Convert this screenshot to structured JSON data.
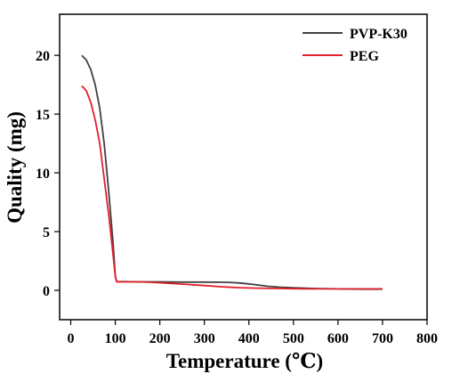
{
  "chart_data": {
    "type": "line",
    "xlabel": "Temperature (℃)",
    "ylabel": "Quality (mg)",
    "xlim": [
      -25,
      800
    ],
    "ylim": [
      -2.5,
      23.5
    ],
    "xticks": [
      0,
      100,
      200,
      300,
      400,
      500,
      600,
      700,
      800
    ],
    "yticks": [
      0,
      5,
      10,
      15,
      20
    ],
    "legend_position": "top-right",
    "grid": false,
    "series": [
      {
        "name": "PVP-K30",
        "color": "#404040",
        "points": [
          [
            25,
            20.0
          ],
          [
            35,
            19.6
          ],
          [
            45,
            18.8
          ],
          [
            55,
            17.5
          ],
          [
            65,
            15.5
          ],
          [
            75,
            12.5
          ],
          [
            85,
            8.5
          ],
          [
            95,
            4.0
          ],
          [
            100,
            1.2
          ],
          [
            103,
            0.75
          ],
          [
            150,
            0.72
          ],
          [
            200,
            0.72
          ],
          [
            250,
            0.7
          ],
          [
            300,
            0.7
          ],
          [
            350,
            0.68
          ],
          [
            380,
            0.62
          ],
          [
            410,
            0.5
          ],
          [
            440,
            0.35
          ],
          [
            470,
            0.27
          ],
          [
            500,
            0.22
          ],
          [
            550,
            0.15
          ],
          [
            600,
            0.12
          ],
          [
            650,
            0.1
          ],
          [
            700,
            0.1
          ]
        ]
      },
      {
        "name": "PEG",
        "color": "#e0202a",
        "points": [
          [
            25,
            17.4
          ],
          [
            35,
            17.0
          ],
          [
            45,
            16.0
          ],
          [
            55,
            14.5
          ],
          [
            65,
            12.5
          ],
          [
            75,
            9.5
          ],
          [
            85,
            6.5
          ],
          [
            95,
            3.0
          ],
          [
            100,
            1.2
          ],
          [
            103,
            0.72
          ],
          [
            150,
            0.72
          ],
          [
            180,
            0.68
          ],
          [
            220,
            0.6
          ],
          [
            260,
            0.5
          ],
          [
            300,
            0.4
          ],
          [
            340,
            0.3
          ],
          [
            380,
            0.22
          ],
          [
            420,
            0.18
          ],
          [
            470,
            0.15
          ],
          [
            520,
            0.13
          ],
          [
            560,
            0.12
          ],
          [
            600,
            0.12
          ],
          [
            650,
            0.12
          ],
          [
            700,
            0.12
          ]
        ]
      }
    ]
  }
}
